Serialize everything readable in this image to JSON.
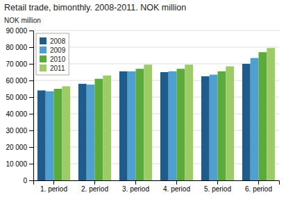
{
  "chart_data": {
    "type": "bar",
    "title": "Retail trade, bimonthly. 2008-2011. NOK million",
    "ylabel": "NOK million",
    "categories": [
      "1. period",
      "2. period",
      "3. period",
      "4. period",
      "5. period",
      "6. period"
    ],
    "series": [
      {
        "name": "2008",
        "color": "#1F5C8B",
        "values": [
          54000,
          58000,
          65500,
          65000,
          62500,
          70000
        ]
      },
      {
        "name": "2009",
        "color": "#4F9FD0",
        "values": [
          53500,
          57500,
          65500,
          65500,
          63500,
          73500
        ]
      },
      {
        "name": "2010",
        "color": "#5AAA3C",
        "values": [
          55000,
          61000,
          67000,
          67000,
          65500,
          77000
        ]
      },
      {
        "name": "2011",
        "color": "#9CCC65",
        "values": [
          56500,
          63000,
          69500,
          69500,
          68500,
          79500
        ]
      }
    ],
    "ylim": [
      0,
      90000
    ],
    "yticks": [
      0,
      {
        "value": 10000,
        "label": "10 000"
      },
      {
        "value": 20000,
        "label": "20 000"
      },
      {
        "value": 30000,
        "label": "30 000"
      },
      {
        "value": 40000,
        "label": "40 000"
      },
      {
        "value": 50000,
        "label": "50 000"
      },
      {
        "value": 60000,
        "label": "60 000"
      },
      {
        "value": 70000,
        "label": "70 000"
      },
      {
        "value": 80000,
        "label": "80 000"
      },
      {
        "value": 90000,
        "label": "90 000"
      }
    ],
    "grid": true,
    "legend": "upper left"
  }
}
